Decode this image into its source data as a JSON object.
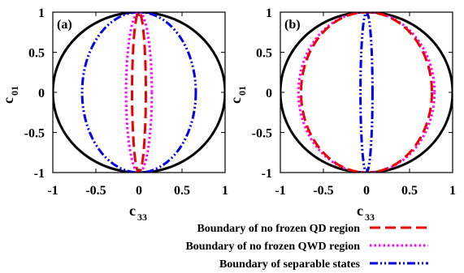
{
  "chart_data": [
    {
      "type": "line",
      "panel_label": "(a)",
      "xlabel": "c",
      "xlabel_sub": "33",
      "ylabel": "c",
      "ylabel_sub": "01",
      "xlim": [
        -1,
        1
      ],
      "ylim": [
        -1,
        1
      ],
      "xticks": [
        "-1",
        "-0.5",
        "0",
        "0.5",
        "1"
      ],
      "yticks": [
        "1",
        "0.5",
        "0",
        "-0.5",
        "-1"
      ],
      "grid": false,
      "series": [
        {
          "key": "unit_circle",
          "kind": "ellipse",
          "rx": 1.0,
          "ry": 1.0,
          "color": "#000000",
          "dash": "solid"
        },
        {
          "key": "separable",
          "name": "Boundary of separable states",
          "kind": "ellipse",
          "rx": 0.66,
          "ry": 1.0,
          "color": "#0000ee",
          "dash": "dashdotdot"
        },
        {
          "key": "no_frozen_qwd",
          "name": "Boundary of no frozen QWD region",
          "kind": "ellipse",
          "rx": 0.15,
          "ry": 1.0,
          "color": "#ff00ff",
          "dash": "dotted"
        },
        {
          "key": "no_frozen_qd",
          "name": "Boundary of no frozen QD region",
          "kind": "ellipse",
          "rx": 0.08,
          "ry": 1.0,
          "color": "#ee0000",
          "dash": "dashed"
        }
      ]
    },
    {
      "type": "line",
      "panel_label": "(b)",
      "xlabel": "c",
      "xlabel_sub": "33",
      "ylabel": "c",
      "ylabel_sub": "01",
      "xlim": [
        -1,
        1
      ],
      "ylim": [
        -1,
        1
      ],
      "xticks": [
        "-1",
        "-0.5",
        "0",
        "0.5",
        "1"
      ],
      "yticks": [
        "1",
        "0.5",
        "0",
        "-0.5",
        "-1"
      ],
      "grid": false,
      "series": [
        {
          "key": "unit_circle",
          "kind": "ellipse",
          "rx": 1.0,
          "ry": 1.0,
          "color": "#000000",
          "dash": "solid"
        },
        {
          "key": "no_frozen_qwd",
          "name": "Boundary of no frozen QWD region",
          "kind": "ellipse",
          "rx": 0.79,
          "ry": 1.0,
          "color": "#ff00ff",
          "dash": "dotted"
        },
        {
          "key": "no_frozen_qd",
          "name": "Boundary of no frozen QD region",
          "kind": "ellipse",
          "rx": 0.76,
          "ry": 1.0,
          "color": "#ee0000",
          "dash": "dashed"
        },
        {
          "key": "separable",
          "name": "Boundary of separable states",
          "kind": "ellipse",
          "rx": 0.07,
          "ry": 1.0,
          "color": "#0000ee",
          "dash": "dashdotdot"
        }
      ]
    }
  ],
  "legend": {
    "placement": "bottom",
    "entries": [
      {
        "label": "Boundary of no frozen QD region",
        "color": "#ee0000",
        "dash": "dashed"
      },
      {
        "label": "Boundary of no frozen QWD region",
        "color": "#ff00ff",
        "dash": "dotted"
      },
      {
        "label": "Boundary of separable states",
        "color": "#0000ee",
        "dash": "dashdotdot"
      }
    ]
  }
}
